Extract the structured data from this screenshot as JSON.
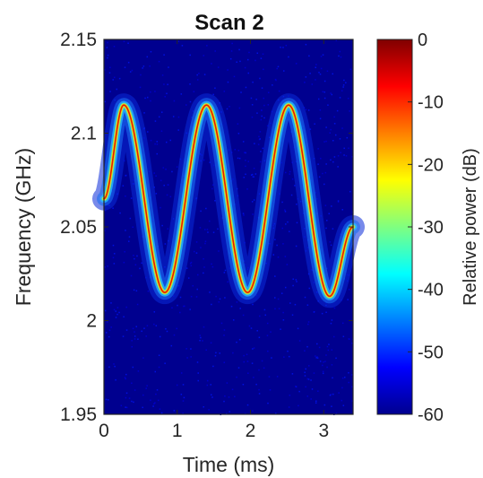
{
  "chart_data": {
    "type": "heatmap",
    "title": "Scan 2",
    "xlabel": "Time (ms)",
    "ylabel": "Frequency (GHz)",
    "xlim": [
      0,
      3.4
    ],
    "ylim": [
      1.95,
      2.15
    ],
    "xticks": [
      0,
      1,
      2,
      3
    ],
    "xtick_labels": [
      "0",
      "1",
      "2",
      "3"
    ],
    "yticks": [
      1.95,
      2.0,
      2.05,
      2.1,
      2.15
    ],
    "ytick_labels": [
      "1.95",
      "2",
      "2.05",
      "2.1",
      "2.15"
    ],
    "colorbar": {
      "label": "Relative power (dB)",
      "range": [
        -60,
        0
      ],
      "ticks": [
        0,
        -10,
        -20,
        -30,
        -40,
        -50,
        -60
      ],
      "tick_labels": [
        "0",
        "-10",
        "-20",
        "-30",
        "-40",
        "-50",
        "-60"
      ],
      "colormap": "jet"
    },
    "signal": {
      "description_points_time_ms": [
        0,
        0.27,
        0.83,
        1.4,
        1.96,
        2.52,
        3.08,
        3.4
      ],
      "frequency_ghz": [
        2.065,
        2.115,
        2.015,
        2.115,
        2.015,
        2.115,
        2.013,
        2.05
      ],
      "peak_power_db": 0,
      "noise_floor_db": -58
    },
    "grid": false
  }
}
